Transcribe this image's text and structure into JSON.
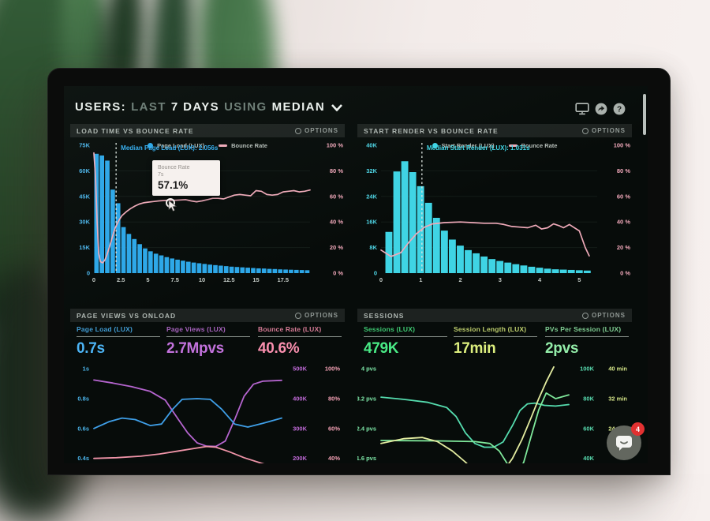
{
  "ui": {
    "title": {
      "users": "USERS:",
      "last": "LAST",
      "days": "7 DAYS",
      "using": "USING",
      "median": "MEDIAN"
    },
    "options_label": "OPTIONS",
    "tooltip": {
      "title": "Bounce Rate",
      "x": "7s",
      "value": "57.1%"
    },
    "chat_badge": "4"
  },
  "chart_data": [
    {
      "type": "histogram-line",
      "title": "LOAD TIME VS BOUNCE RATE",
      "x_range": [
        0,
        20
      ],
      "x_ticks": [
        "0",
        "2.5",
        "5",
        "7.5",
        "10",
        "12.5",
        "15",
        "17.5"
      ],
      "x_tick_values": [
        0,
        2.5,
        5,
        7.5,
        10,
        12.5,
        15,
        17.5
      ],
      "y_left_range": [
        0,
        75
      ],
      "y_left_ticks": [
        "75K",
        "60K",
        "45K",
        "30K",
        "15K",
        "0"
      ],
      "y_right_ticks": [
        "100 %",
        "80 %",
        "60 %",
        "40 %",
        "20 %",
        "0 %"
      ],
      "bin_start": 0,
      "bin_width": 0.5,
      "bars_k": [
        70,
        69,
        66,
        49,
        41,
        27,
        23,
        20,
        17,
        14.5,
        12.8,
        11.4,
        10.4,
        9.4,
        8.6,
        7.9,
        7.3,
        6.7,
        6.2,
        5.8,
        5.4,
        5,
        4.7,
        4.4,
        4.1,
        3.8,
        3.6,
        3.4,
        3.2,
        3,
        2.8,
        2.7,
        2.5,
        2.4,
        2.2,
        2.1,
        2,
        1.9,
        1.8,
        1.7
      ],
      "line_points": [
        [
          0,
          94
        ],
        [
          0.15,
          75
        ],
        [
          0.3,
          40
        ],
        [
          0.45,
          15
        ],
        [
          0.6,
          9
        ],
        [
          0.8,
          8
        ],
        [
          1,
          10
        ],
        [
          1.2,
          14
        ],
        [
          1.5,
          22
        ],
        [
          1.8,
          31
        ],
        [
          2,
          36
        ],
        [
          2.3,
          41
        ],
        [
          2.6,
          45
        ],
        [
          3,
          48
        ],
        [
          3.4,
          50.5
        ],
        [
          3.8,
          52.5
        ],
        [
          4.2,
          54
        ],
        [
          4.6,
          55
        ],
        [
          5,
          55.5
        ],
        [
          5.5,
          56
        ],
        [
          6,
          56.5
        ],
        [
          6.5,
          56.8
        ],
        [
          7,
          57.1
        ],
        [
          7.5,
          57
        ],
        [
          8,
          57.2
        ],
        [
          8.5,
          57.5
        ],
        [
          9,
          56.5
        ],
        [
          9.5,
          55.8
        ],
        [
          10,
          56.5
        ],
        [
          10.5,
          57.5
        ],
        [
          11,
          58.5
        ],
        [
          11.5,
          58.5
        ],
        [
          12,
          58
        ],
        [
          12.5,
          59.5
        ],
        [
          13,
          61
        ],
        [
          13.5,
          61.5
        ],
        [
          14,
          61
        ],
        [
          14.5,
          60.5
        ],
        [
          15,
          64.5
        ],
        [
          15.5,
          64
        ],
        [
          16,
          61.5
        ],
        [
          16.5,
          61
        ],
        [
          17,
          61.5
        ],
        [
          17.5,
          63.5
        ],
        [
          18,
          64
        ],
        [
          18.5,
          64.5
        ],
        [
          19,
          63.5
        ],
        [
          19.5,
          64
        ],
        [
          20,
          65
        ]
      ],
      "median": {
        "x": 2.056,
        "label": "Median Page Load (LUX): 2.056s"
      },
      "legend": [
        "Page Load (LUX)",
        "Bounce Rate"
      ],
      "colors": {
        "bar": "#2da7e8",
        "line": "#efaab9",
        "left_axis": "#4cb6ec",
        "right_axis": "#f2a9bb",
        "x_axis": "#c5cdc8",
        "median_label": "#35aef0"
      }
    },
    {
      "type": "histogram-line",
      "title": "START RENDER VS BOUNCE RATE",
      "x_range": [
        0,
        5.45
      ],
      "x_ticks": [
        "0",
        "1",
        "2",
        "3",
        "4",
        "5"
      ],
      "x_tick_values": [
        0,
        1,
        2,
        3,
        4,
        5
      ],
      "y_left_range": [
        0,
        40
      ],
      "y_left_ticks": [
        "40K",
        "32K",
        "24K",
        "16K",
        "8K",
        "0"
      ],
      "y_right_ticks": [
        "100 %",
        "80 %",
        "60 %",
        "40 %",
        "20 %",
        "0 %"
      ],
      "bin_start": 0.1,
      "bin_width": 0.2,
      "bars_k": [
        12.9,
        31.8,
        35,
        31.6,
        27.2,
        22,
        17.3,
        13.3,
        10.5,
        8.6,
        7.2,
        6.2,
        5.2,
        4.4,
        3.8,
        3.3,
        2.8,
        2.4,
        2,
        1.7,
        1.4,
        1.2,
        1.1,
        1,
        0.9,
        0.8
      ],
      "line_points": [
        [
          0,
          18
        ],
        [
          0.25,
          13
        ],
        [
          0.5,
          16
        ],
        [
          0.7,
          24
        ],
        [
          0.9,
          31
        ],
        [
          1.1,
          36
        ],
        [
          1.3,
          38.5
        ],
        [
          1.6,
          39.5
        ],
        [
          2,
          40
        ],
        [
          2.3,
          39.5
        ],
        [
          2.6,
          39
        ],
        [
          2.9,
          39
        ],
        [
          3.1,
          38
        ],
        [
          3.3,
          36.5
        ],
        [
          3.5,
          36
        ],
        [
          3.7,
          35.5
        ],
        [
          3.9,
          37.5
        ],
        [
          4.05,
          34.5
        ],
        [
          4.2,
          35.5
        ],
        [
          4.35,
          38.5
        ],
        [
          4.5,
          37
        ],
        [
          4.6,
          35.5
        ],
        [
          4.75,
          38
        ],
        [
          4.85,
          36
        ],
        [
          5,
          33
        ],
        [
          5.15,
          20
        ],
        [
          5.25,
          13.5
        ]
      ],
      "median": {
        "x": 1.031,
        "label": "Median Start Render (LUX): 1.031s"
      },
      "legend": [
        "Start Render (LUX)",
        "Bounce Rate"
      ],
      "colors": {
        "bar": "#3fd4e4",
        "line": "#efaab9",
        "left_axis": "#4fd8e8",
        "right_axis": "#f2a9bb",
        "x_axis": "#c5cdc8",
        "median_label": "#40d6e6"
      }
    },
    {
      "type": "multi-line",
      "title": "PAGE VIEWS VS ONLOAD",
      "metrics": [
        {
          "label": "Page Load (LUX)",
          "value": "0.7s",
          "color": "#4cb4f5"
        },
        {
          "label": "Page Views (LUX)",
          "value": "2.7Mpvs",
          "color": "#c272dc"
        },
        {
          "label": "Bounce Rate (LUX)",
          "value": "40.6%",
          "color": "#f98fae"
        }
      ],
      "rows": [
        {
          "left": "1s",
          "right1": "500K",
          "right2": "100%"
        },
        {
          "left": "0.8s",
          "right1": "400K",
          "right2": "80%"
        },
        {
          "left": "0.6s",
          "right1": "300K",
          "right2": "60%"
        },
        {
          "left": "0.4s",
          "right1": "200K",
          "right2": "40%"
        }
      ],
      "axis_colors": {
        "left": "#4cb6ec",
        "right1": "#c06ad8",
        "right2": "#f2a0b4"
      },
      "series": [
        {
          "name": "Page Views (LUX)",
          "unit": "K",
          "color": "#b565cf",
          "range": [
            164.9,
            515.8
          ],
          "points": [
            [
              0,
              462
            ],
            [
              0.1,
              452
            ],
            [
              0.2,
              440
            ],
            [
              0.3,
              424
            ],
            [
              0.38,
              395
            ],
            [
              0.45,
              330
            ],
            [
              0.5,
              285
            ],
            [
              0.55,
              252
            ],
            [
              0.6,
              241
            ],
            [
              0.65,
              240
            ],
            [
              0.7,
              258
            ],
            [
              0.75,
              330
            ],
            [
              0.8,
              408
            ],
            [
              0.85,
              448
            ],
            [
              0.9,
              458
            ],
            [
              1,
              461
            ]
          ]
        },
        {
          "name": "Page Load (LUX)",
          "unit": "s",
          "color": "#3f9fe8",
          "range": [
            0.33,
            1.032
          ],
          "points": [
            [
              0,
              0.6
            ],
            [
              0.08,
              0.645
            ],
            [
              0.15,
              0.67
            ],
            [
              0.22,
              0.66
            ],
            [
              0.3,
              0.62
            ],
            [
              0.36,
              0.63
            ],
            [
              0.42,
              0.73
            ],
            [
              0.47,
              0.795
            ],
            [
              0.55,
              0.8
            ],
            [
              0.62,
              0.795
            ],
            [
              0.68,
              0.73
            ],
            [
              0.75,
              0.63
            ],
            [
              0.82,
              0.61
            ],
            [
              0.9,
              0.635
            ],
            [
              1,
              0.67
            ]
          ]
        },
        {
          "name": "Bounce Rate (LUX)",
          "unit": "%",
          "color": "#ef94a8",
          "range": [
            33,
            103.2
          ],
          "points": [
            [
              0,
              40
            ],
            [
              0.12,
              40.5
            ],
            [
              0.25,
              41.5
            ],
            [
              0.35,
              43
            ],
            [
              0.45,
              45
            ],
            [
              0.55,
              47
            ],
            [
              0.6,
              48
            ],
            [
              0.65,
              47.5
            ],
            [
              0.72,
              44.5
            ],
            [
              0.8,
              40.5
            ],
            [
              0.9,
              36.5
            ],
            [
              1,
              33.5
            ]
          ]
        }
      ]
    },
    {
      "type": "multi-line",
      "title": "SESSIONS",
      "metrics": [
        {
          "label": "Sessions (LUX)",
          "value": "479K",
          "color": "#49ea85"
        },
        {
          "label": "Session Length (LUX)",
          "value": "17min",
          "color": "#dcee7e"
        },
        {
          "label": "PVs Per Session (LUX)",
          "value": "2pvs",
          "color": "#93eda9"
        }
      ],
      "rows": [
        {
          "left": "4 pvs",
          "right1": "100K",
          "right2": "40 min"
        },
        {
          "left": "3.2 pvs",
          "right1": "80K",
          "right2": "32 min"
        },
        {
          "left": "2.4 pvs",
          "right1": "60K",
          "right2": "24 min"
        },
        {
          "left": "1.6 pvs",
          "right1": "40K",
          "right2": ""
        }
      ],
      "axis_colors": {
        "left": "#7ee8a8",
        "right1": "#58dcb0",
        "right2": "#d8e88a"
      },
      "series": [
        {
          "name": "Sessions (LUX)",
          "unit": "K",
          "color": "#55dcae",
          "range": [
            33,
            103.2
          ],
          "points": [
            [
              0,
              81
            ],
            [
              0.12,
              79.5
            ],
            [
              0.25,
              77.5
            ],
            [
              0.35,
              74
            ],
            [
              0.4,
              68
            ],
            [
              0.45,
              57
            ],
            [
              0.5,
              50
            ],
            [
              0.55,
              47.5
            ],
            [
              0.6,
              47.5
            ],
            [
              0.65,
              51
            ],
            [
              0.7,
              62
            ],
            [
              0.74,
              72
            ],
            [
              0.78,
              76.5
            ],
            [
              0.82,
              77
            ],
            [
              0.87,
              75.5
            ],
            [
              0.93,
              75
            ],
            [
              1,
              76
            ]
          ]
        },
        {
          "name": "PVs Per Session (LUX)",
          "unit": "pvs",
          "color": "#7fe89b",
          "range": [
            1.32,
            4.13
          ],
          "points": [
            [
              0,
              2.08
            ],
            [
              0.3,
              2.07
            ],
            [
              0.5,
              2.05
            ],
            [
              0.58,
              2
            ],
            [
              0.63,
              1.8
            ],
            [
              0.68,
              1.4
            ],
            [
              0.72,
              1.15
            ],
            [
              0.76,
              1.5
            ],
            [
              0.8,
              2.2
            ],
            [
              0.84,
              2.9
            ],
            [
              0.88,
              3.35
            ],
            [
              0.93,
              3.2
            ],
            [
              1,
              3.3
            ]
          ]
        },
        {
          "name": "Session Length (LUX)",
          "unit": "min",
          "color": "#e3eca0",
          "range": [
            13.2,
            41.3
          ],
          "points": [
            [
              0,
              20
            ],
            [
              0.12,
              21.3
            ],
            [
              0.22,
              21.6
            ],
            [
              0.3,
              20.5
            ],
            [
              0.38,
              18
            ],
            [
              0.45,
              15
            ],
            [
              0.5,
              12.5
            ],
            [
              0.55,
              11
            ],
            [
              0.6,
              11
            ],
            [
              0.65,
              12.5
            ],
            [
              0.7,
              16
            ],
            [
              0.75,
              21
            ],
            [
              0.8,
              27
            ],
            [
              0.84,
              32
            ],
            [
              0.88,
              36.5
            ],
            [
              0.92,
              40.5
            ]
          ]
        }
      ]
    }
  ]
}
